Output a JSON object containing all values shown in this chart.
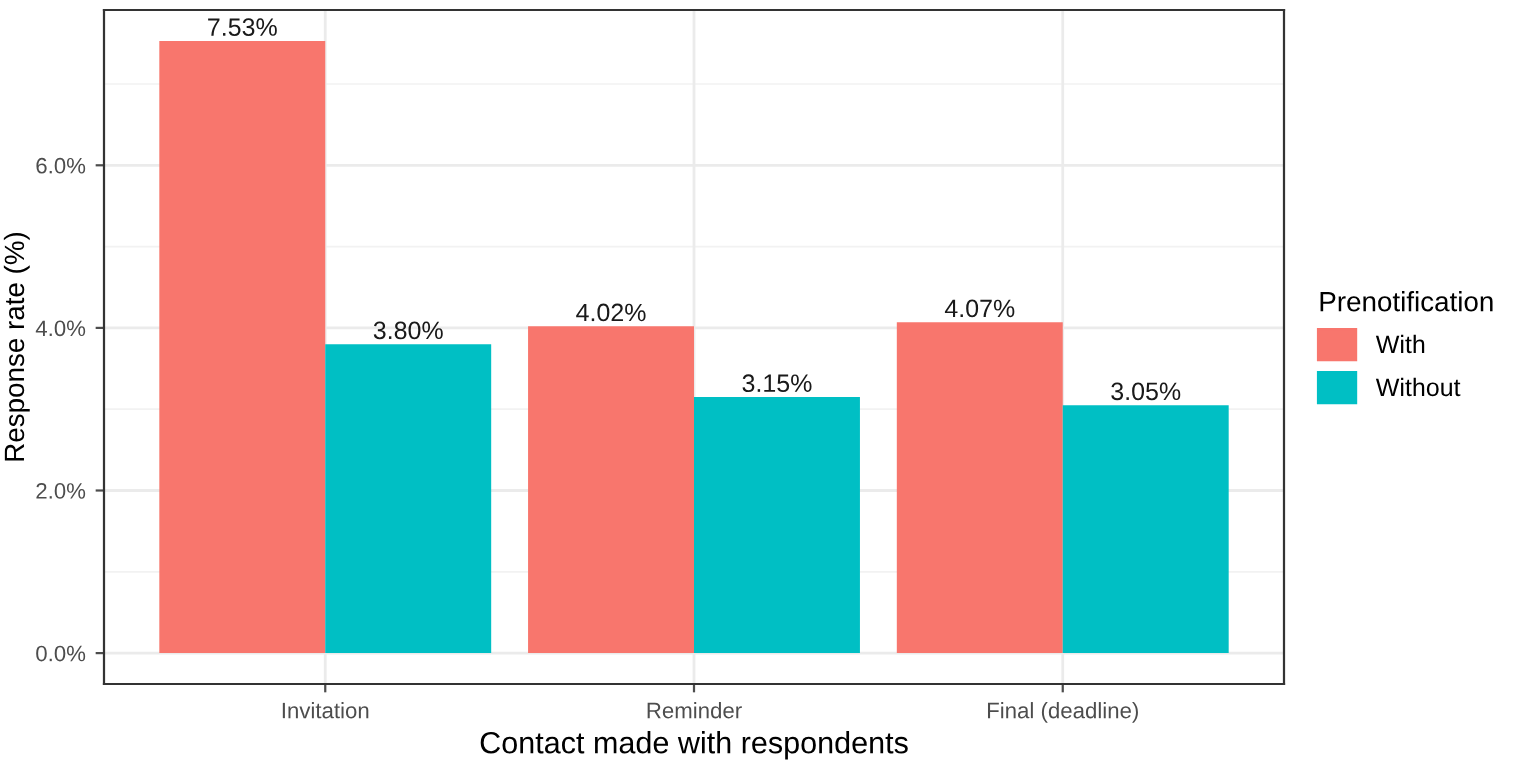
{
  "chart_data": {
    "type": "bar",
    "xlabel": "Contact made with respondents",
    "ylabel": "Response rate (%)",
    "legend_title": "Prenotification",
    "categories": [
      "Invitation",
      "Reminder",
      "Final (deadline)"
    ],
    "series": [
      {
        "name": "With",
        "color": "#f8766d",
        "values": [
          7.53,
          4.02,
          4.07
        ],
        "value_labels": [
          "7.53%",
          "4.02%",
          "4.07%"
        ]
      },
      {
        "name": "Without",
        "color": "#00bfc4",
        "values": [
          3.8,
          3.15,
          3.05
        ],
        "value_labels": [
          "3.80%",
          "3.15%",
          "3.05%"
        ]
      }
    ],
    "ylim": [
      -0.38,
      7.91
    ],
    "yticks": [
      {
        "value": 0,
        "label": "0.0%"
      },
      {
        "value": 2,
        "label": "2.0%"
      },
      {
        "value": 4,
        "label": "4.0%"
      },
      {
        "value": 6,
        "label": "6.0%"
      }
    ],
    "grid": true,
    "legend": "right"
  }
}
